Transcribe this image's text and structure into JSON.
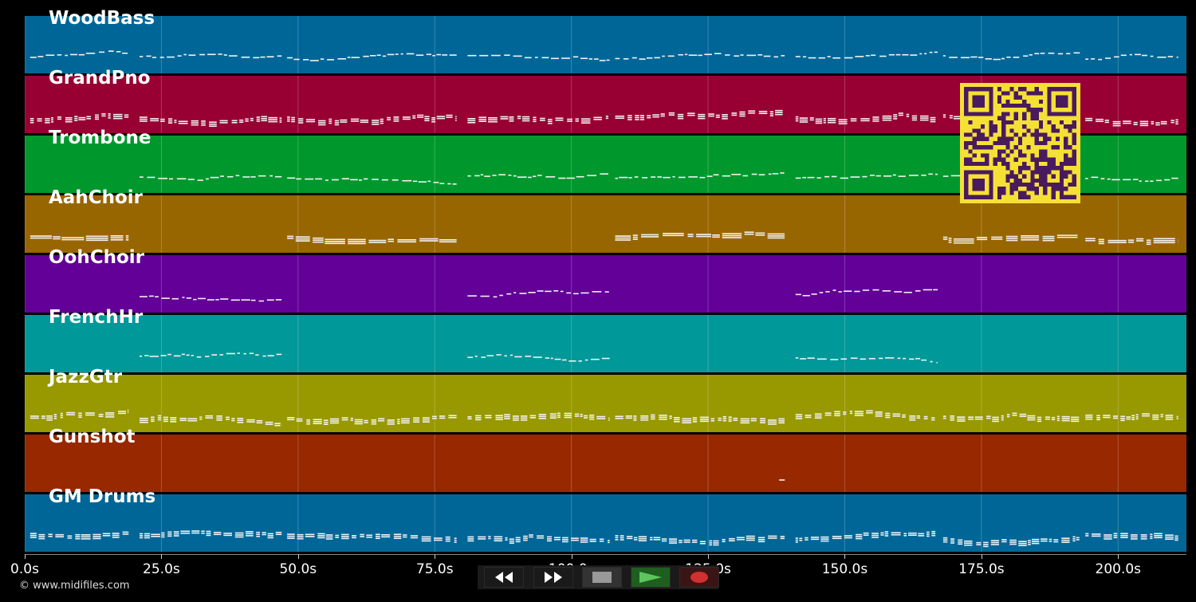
{
  "tracks": [
    {
      "name": "WoodBass",
      "color": "#006698"
    },
    {
      "name": "GrandPno",
      "color": "#980033"
    },
    {
      "name": "Trombone",
      "color": "#00982c"
    },
    {
      "name": "AahChoir",
      "color": "#986600"
    },
    {
      "name": "OohChoir",
      "color": "#620098"
    },
    {
      "name": "FrenchHr",
      "color": "#009898"
    },
    {
      "name": "JazzGtr",
      "color": "#989800"
    },
    {
      "name": "Gunshot",
      "color": "#982800"
    },
    {
      "name": "GM Drums",
      "color": "#006698"
    }
  ],
  "timeline": {
    "ticks": [
      "0.0s",
      "25.0s",
      "50.0s",
      "75.0s",
      "100.0s",
      "125.0s",
      "150.0s",
      "175.0s",
      "200.0s"
    ],
    "tick_seconds": [
      0,
      25,
      50,
      75,
      100,
      125,
      150,
      175,
      200
    ],
    "max_seconds": 212.5
  },
  "copyright": "© www.midifiles.com",
  "transport": [
    {
      "name": "rewind-button",
      "icon": "rewind-icon",
      "bg": "#111111"
    },
    {
      "name": "fast-forward-button",
      "icon": "fast-forward-icon",
      "bg": "#111111"
    },
    {
      "name": "stop-button",
      "icon": "stop-icon",
      "bg": "#333333"
    },
    {
      "name": "play-button",
      "icon": "play-icon",
      "bg": "#1f5e1f"
    },
    {
      "name": "record-button",
      "icon": "record-icon",
      "bg": "#3a1515"
    }
  ],
  "qr_icon": "qr-code-icon"
}
